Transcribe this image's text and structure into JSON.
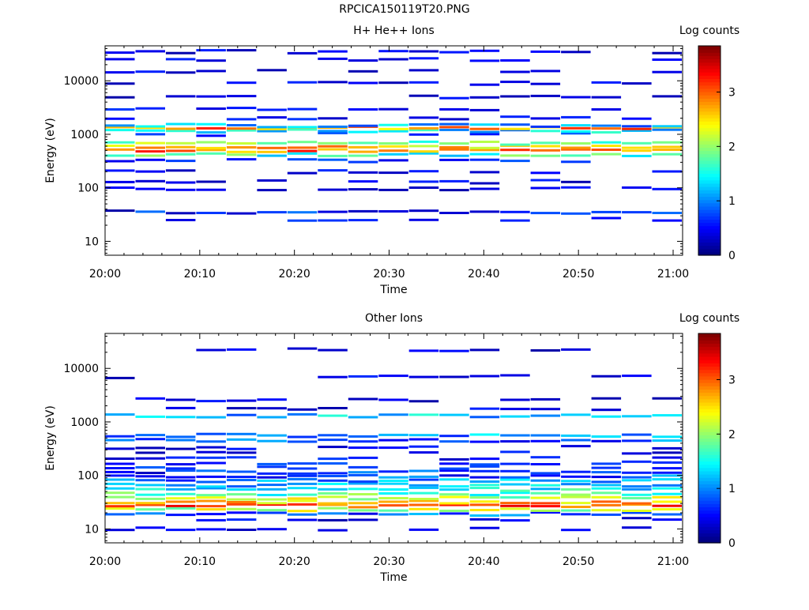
{
  "figure": {
    "title": "RPCICA150119T20.PNG"
  },
  "chart_data": [
    {
      "type": "heatmap",
      "title": "H+ He++ Ions",
      "xlabel": "Time",
      "ylabel": "Energy (eV)",
      "x_ticks": [
        "20:00",
        "20:10",
        "20:20",
        "20:30",
        "20:40",
        "20:50",
        "21:00"
      ],
      "y_ticks": [
        "10",
        "100",
        "1000",
        "10000"
      ],
      "y_scale": "log",
      "ylim": [
        5.5,
        45000
      ],
      "colorbar": {
        "label": "Log counts",
        "ticks": [
          "0",
          "1",
          "2",
          "3"
        ],
        "range": [
          0,
          3.85
        ],
        "colormap": "jet"
      },
      "time_bins": 19,
      "time_range": [
        "20:00",
        "21:01"
      ],
      "energy_bands_eV": [
        {
          "energy": 35,
          "value": 0.6
        },
        {
          "energy": 26,
          "value": 0.4
        },
        {
          "energy": 95,
          "value": 0.2
        },
        {
          "energy": 130,
          "value": 0.2
        },
        {
          "energy": 200,
          "value": 0.2
        },
        {
          "energy": 320,
          "value": 0.4
        },
        {
          "energy": 420,
          "value": 1.6
        },
        {
          "energy": 500,
          "value": 2.9
        },
        {
          "energy": 580,
          "value": 2.6
        },
        {
          "energy": 680,
          "value": 1.9
        },
        {
          "energy": 1000,
          "value": 0.5
        },
        {
          "energy": 1150,
          "value": 1.3
        },
        {
          "energy": 1300,
          "value": 2.8
        },
        {
          "energy": 1450,
          "value": 1.1
        },
        {
          "energy": 2000,
          "value": 0.3
        },
        {
          "energy": 3000,
          "value": 0.3
        },
        {
          "energy": 5000,
          "value": 0.2
        },
        {
          "energy": 9000,
          "value": 0.2
        },
        {
          "energy": 15000,
          "value": 0.2
        },
        {
          "energy": 25000,
          "value": 0.2
        },
        {
          "energy": 35000,
          "value": 0.2
        }
      ]
    },
    {
      "type": "heatmap",
      "title": "Other Ions",
      "xlabel": "Time",
      "ylabel": "Energy (eV)",
      "x_ticks": [
        "20:00",
        "20:10",
        "20:20",
        "20:30",
        "20:40",
        "20:50",
        "21:00"
      ],
      "y_ticks": [
        "10",
        "100",
        "1000",
        "10000"
      ],
      "y_scale": "log",
      "ylim": [
        5.5,
        45000
      ],
      "colorbar": {
        "label": "Log counts",
        "ticks": [
          "0",
          "1",
          "2",
          "3"
        ],
        "range": [
          0,
          3.85
        ],
        "colormap": "jet"
      },
      "time_bins": 19,
      "time_range": [
        "20:00",
        "21:01"
      ],
      "energy_bands_eV": [
        {
          "energy": 10,
          "value": 0.1
        },
        {
          "energy": 15,
          "value": 0.2
        },
        {
          "energy": 19,
          "value": 0.8
        },
        {
          "energy": 23,
          "value": 2.2
        },
        {
          "energy": 27,
          "value": 3.0
        },
        {
          "energy": 32,
          "value": 2.7
        },
        {
          "energy": 38,
          "value": 2.1
        },
        {
          "energy": 45,
          "value": 1.7
        },
        {
          "energy": 55,
          "value": 1.4
        },
        {
          "energy": 66,
          "value": 1.2
        },
        {
          "energy": 80,
          "value": 1.0
        },
        {
          "energy": 95,
          "value": 0.8
        },
        {
          "energy": 115,
          "value": 0.6
        },
        {
          "energy": 140,
          "value": 0.5
        },
        {
          "energy": 170,
          "value": 0.4
        },
        {
          "energy": 210,
          "value": 0.3
        },
        {
          "energy": 260,
          "value": 0.2
        },
        {
          "energy": 330,
          "value": 0.2
        },
        {
          "energy": 450,
          "value": 0.8
        },
        {
          "energy": 560,
          "value": 1.0
        },
        {
          "energy": 1300,
          "value": 1.2
        },
        {
          "energy": 1750,
          "value": 0.2
        },
        {
          "energy": 2600,
          "value": 0.2
        },
        {
          "energy": 7000,
          "value": 0.2
        },
        {
          "energy": 22000,
          "value": 0.2
        }
      ]
    }
  ]
}
